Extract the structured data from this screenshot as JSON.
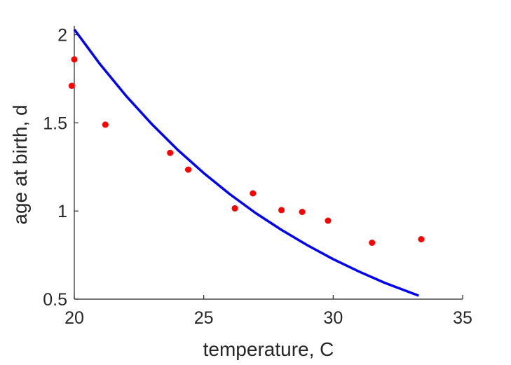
{
  "chart_data": {
    "type": "scatter",
    "xlabel": "temperature, C",
    "ylabel": "age at birth, d",
    "xlim": [
      20,
      35
    ],
    "ylim": [
      0.5,
      2.05
    ],
    "grid": false,
    "x_ticks": [
      {
        "value": 20,
        "label": "20"
      },
      {
        "value": 25,
        "label": "25"
      },
      {
        "value": 30,
        "label": "30"
      },
      {
        "value": 35,
        "label": "35"
      }
    ],
    "y_ticks": [
      {
        "value": 0.5,
        "label": "0.5"
      },
      {
        "value": 1,
        "label": "1"
      },
      {
        "value": 1.5,
        "label": "1.5"
      },
      {
        "value": 2,
        "label": "2"
      }
    ],
    "series": [
      {
        "kind": "points",
        "color": "#ff0000",
        "x": [
          19.9,
          20.0,
          21.2,
          23.7,
          24.4,
          26.2,
          26.9,
          28.0,
          28.8,
          29.8,
          31.5,
          33.4
        ],
        "y": [
          1.71,
          1.86,
          1.49,
          1.33,
          1.235,
          1.015,
          1.1,
          1.005,
          0.995,
          0.945,
          0.82,
          0.84
        ]
      },
      {
        "kind": "line",
        "color": "#0000ff",
        "x": [
          20.0,
          21.0,
          22.0,
          23.0,
          24.0,
          25.0,
          26.0,
          27.0,
          28.0,
          29.0,
          30.0,
          31.0,
          32.0,
          33.3
        ],
        "y": [
          2.03,
          1.832,
          1.653,
          1.492,
          1.346,
          1.215,
          1.096,
          0.989,
          0.893,
          0.806,
          0.727,
          0.656,
          0.592,
          0.52
        ]
      }
    ]
  }
}
